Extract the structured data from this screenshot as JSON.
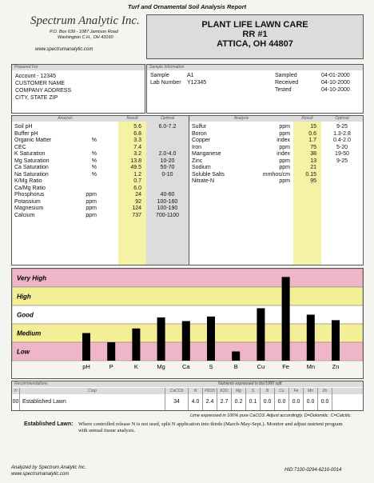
{
  "report_title": "Turf and Ornamental Soil Analysis Report",
  "lab": {
    "name": "Spectrum Analytic Inc.",
    "address1": "P.O. Box 639 - 1087 Jamison Road",
    "address2": "Washington C.H., OH 43160",
    "website": "www.spectrumanalytic.com"
  },
  "client": {
    "line1": "PLANT LIFE LAWN CARE",
    "line2": "RR #1",
    "line3": "ATTICA, OH  44807"
  },
  "prepared_for": {
    "header": "Prepared For",
    "lines": [
      "Account - 12345",
      "CUSTOMER NAME",
      "COMPANY ADDRESS",
      "CITY, STATE  ZIP"
    ]
  },
  "sample_info": {
    "header": "Sample Information",
    "sample_label": "Sample",
    "sample_value": "A1",
    "lab_label": "Lab Number",
    "lab_value": "Y12345",
    "dates": [
      {
        "label": "Sampled",
        "value": "04-01-2000"
      },
      {
        "label": "Received",
        "value": "04-10-2000"
      },
      {
        "label": "Tested",
        "value": "04-10-2000"
      }
    ]
  },
  "analysis_headers": {
    "analysis": "Analysis",
    "result": "Result",
    "optimal": "Optimal"
  },
  "left_rows": [
    {
      "name": "Soil pH",
      "unit": "",
      "result": "5.6",
      "optimal": "6.0-7.2"
    },
    {
      "name": "Buffer pH",
      "unit": "",
      "result": "6.8",
      "optimal": ""
    },
    {
      "name": "Organic Matter",
      "unit": "%",
      "result": "3.3",
      "optimal": ""
    },
    {
      "name": "CEC",
      "unit": "",
      "result": "7.4",
      "optimal": ""
    },
    {
      "name": "K Saturation",
      "unit": "%",
      "result": "3.2",
      "optimal": "2.0-4.0"
    },
    {
      "name": "Mg Saturation",
      "unit": "%",
      "result": "13.8",
      "optimal": "10-20"
    },
    {
      "name": "Ca Saturation",
      "unit": "%",
      "result": "49.5",
      "optimal": "50-70"
    },
    {
      "name": "Na Saturation",
      "unit": "%",
      "result": "1.2",
      "optimal": "0-10"
    },
    {
      "name": "K/Mg Ratio",
      "unit": "",
      "result": "0.7",
      "optimal": ""
    },
    {
      "name": "Ca/Mg Ratio",
      "unit": "",
      "result": "6.0",
      "optimal": ""
    },
    {
      "name": "Phosphorus",
      "unit": "ppm",
      "result": "24",
      "optimal": "40-60"
    },
    {
      "name": "Potassium",
      "unit": "ppm",
      "result": "92",
      "optimal": "100-160"
    },
    {
      "name": "Magnesium",
      "unit": "ppm",
      "result": "124",
      "optimal": "100-190"
    },
    {
      "name": "Calcium",
      "unit": "ppm",
      "result": "737",
      "optimal": "700-1100"
    }
  ],
  "right_rows": [
    {
      "name": "Sulfur",
      "unit": "ppm",
      "result": "15",
      "optimal": "9-25"
    },
    {
      "name": "Boron",
      "unit": "ppm",
      "result": "0.6",
      "optimal": "1.3-2.8"
    },
    {
      "name": "Copper",
      "unit": "index",
      "result": "1.7",
      "optimal": "0.4-2.0"
    },
    {
      "name": "Iron",
      "unit": "ppm",
      "result": "75",
      "optimal": "5-20"
    },
    {
      "name": "Manganese",
      "unit": "index",
      "result": "38",
      "optimal": "19-50"
    },
    {
      "name": "Zinc",
      "unit": "ppm",
      "result": "13",
      "optimal": "9-25"
    },
    {
      "name": "Sodium",
      "unit": "ppm",
      "result": "21",
      "optimal": ""
    },
    {
      "name": "Soluble Salts",
      "unit": "mmhos/cm",
      "result": "0.15",
      "optimal": ""
    },
    {
      "name": "Nitrate-N",
      "unit": "ppm",
      "result": "95",
      "optimal": ""
    }
  ],
  "chart_data": {
    "type": "bar",
    "bands": [
      "Very High",
      "High",
      "Good",
      "Medium",
      "Low"
    ],
    "categories": [
      "pH",
      "P",
      "K",
      "Mg",
      "Ca",
      "S",
      "B",
      "Cu",
      "Fe",
      "Mn",
      "Zn"
    ],
    "values": [
      1.5,
      1.0,
      1.75,
      2.35,
      2.15,
      2.4,
      0.5,
      2.85,
      4.55,
      2.5,
      2.2
    ],
    "ylim": [
      0,
      5
    ],
    "band_colors": [
      "#efb6c8",
      "#f4ef96",
      "#ffffff",
      "#f4ef96",
      "#efb6c8"
    ]
  },
  "recommendations": {
    "header": "Recommendations",
    "nutrients_note": "Nutrients expressed in lbs/1000 sqft",
    "columns": [
      "Yr",
      "Crop",
      "CaCO3",
      "N",
      "P2O5",
      "K2O",
      "Mg",
      "S",
      "B",
      "Cu",
      "Fe",
      "Mn",
      "Zn"
    ],
    "rows": [
      {
        "yr": "00",
        "crop": "Established Lawn",
        "values": [
          "34",
          "4.0",
          "2.4",
          "2.7",
          "0.2",
          "0.1",
          "0.0",
          "0.0",
          "0.0",
          "0.0",
          "0.0"
        ]
      }
    ],
    "lime_note": "Lime expressed in 100% pure CaCO3.  Adjust accordingly.  D=Dolomitic.  C=Calcitic."
  },
  "note": {
    "title": "Established Lawn:",
    "text": "Where controlled release N is not used, split N application into thirds (March-May-Sept.). Monitor and adjust nutrient program with annual tissue analysis."
  },
  "footer": {
    "analyzed_by": "Analyzed by Spectrum Analytic Inc.",
    "website": "www.spectrumanalytic.com",
    "hid": "HID:7100-0294-6210-0014"
  }
}
